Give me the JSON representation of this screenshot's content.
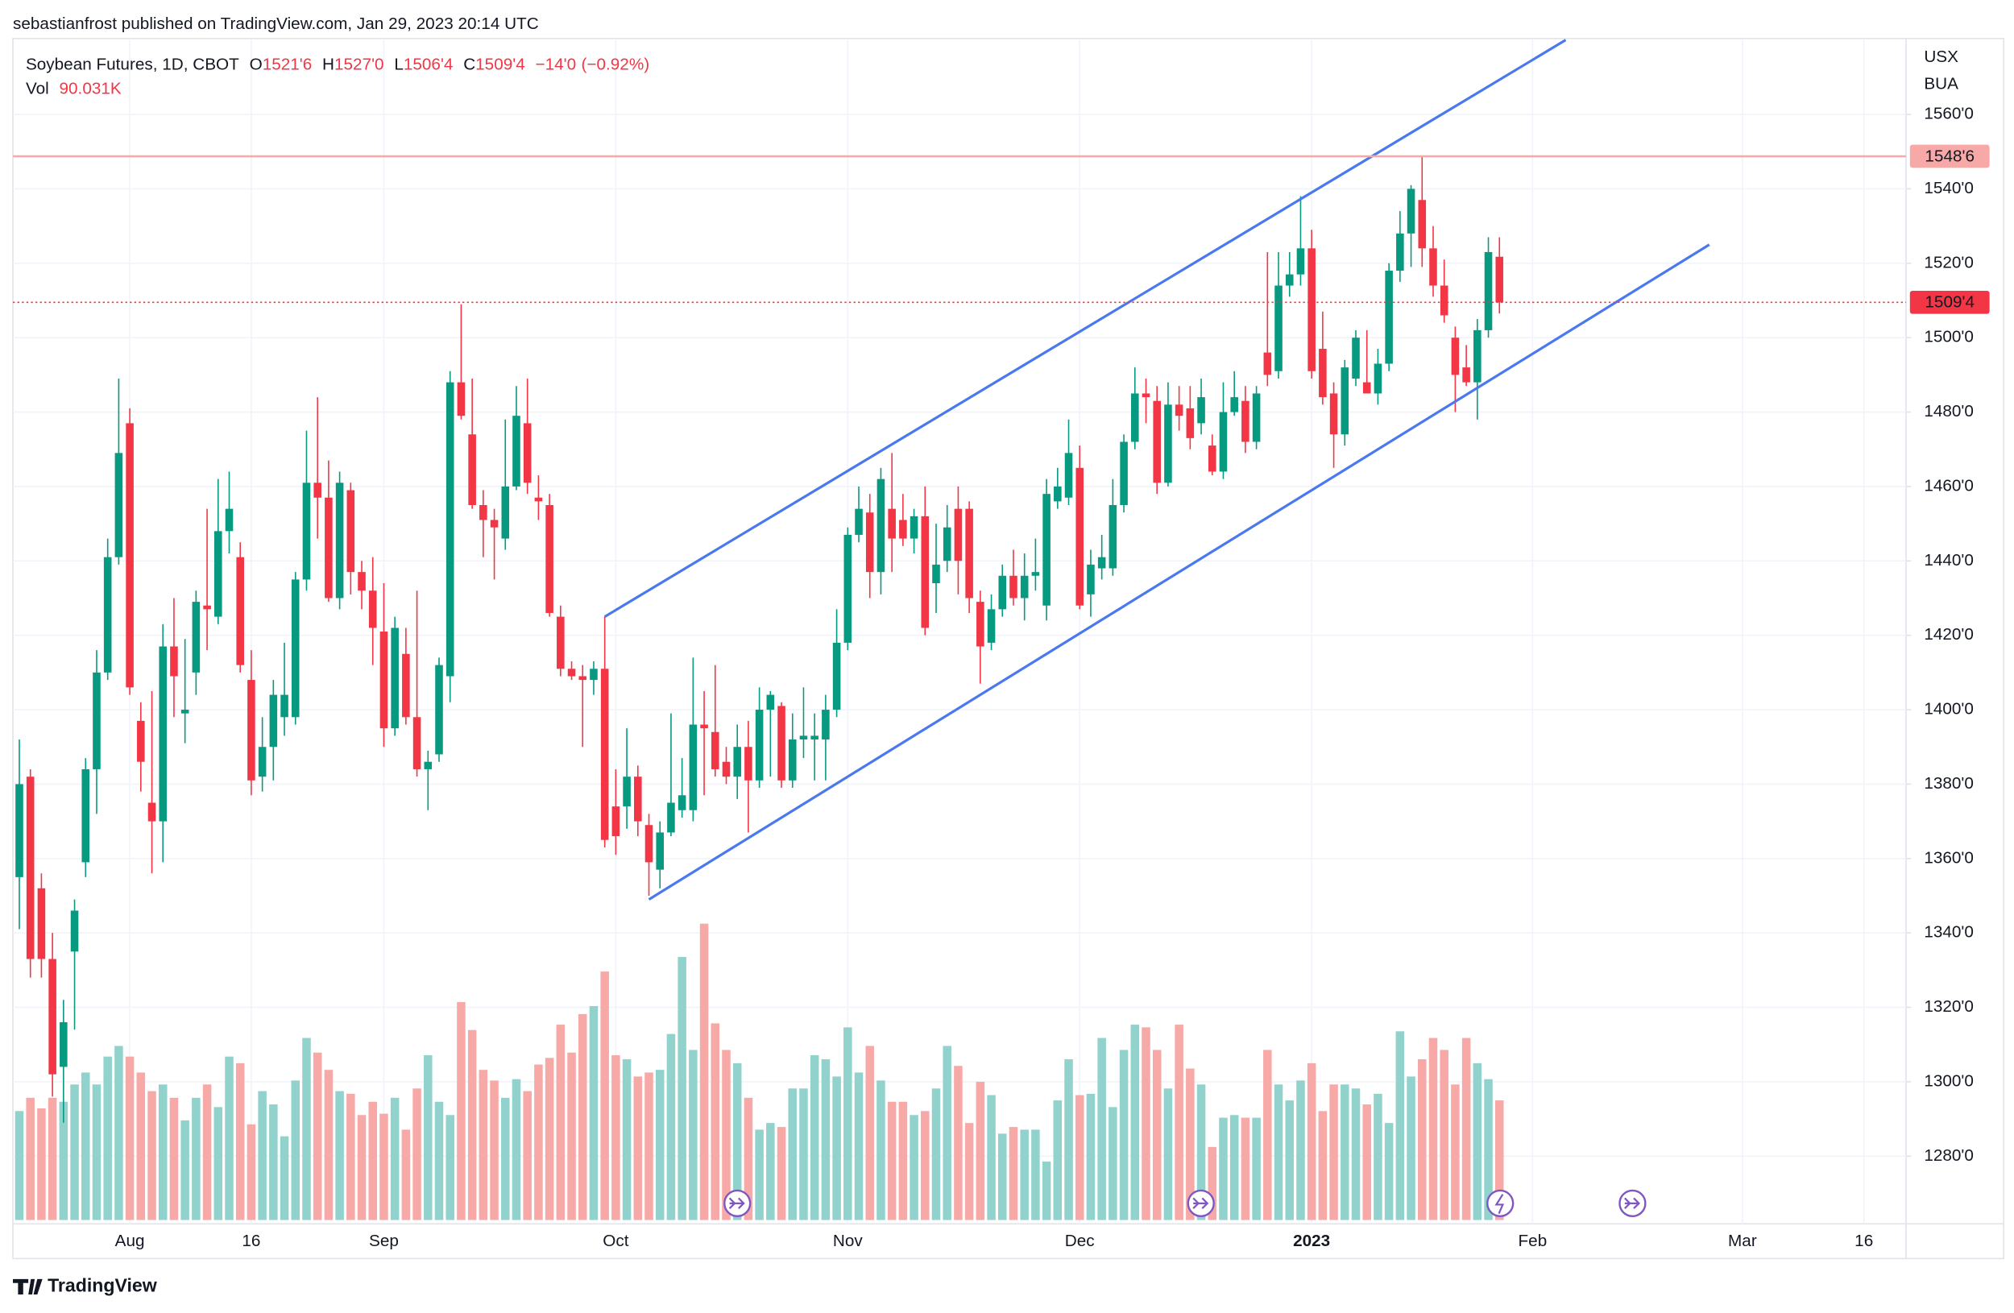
{
  "header": {
    "publisher": "sebastianfrost published on TradingView.com, Jan 29, 2023 20:14 UTC"
  },
  "footer": {
    "brand": "TradingView"
  },
  "chart_data": {
    "type": "candlestick",
    "title": "Soybean Futures, 1D, CBOT",
    "legend": [
      {
        "key": "O",
        "value": 1521.75,
        "label": "1521'6"
      },
      {
        "key": "H",
        "value": 1527,
        "label": "1527'0"
      },
      {
        "key": "L",
        "value": 1506.5,
        "label": "1506'4"
      },
      {
        "key": "C",
        "value": 1509.5,
        "label": "1509'4"
      }
    ],
    "change": {
      "value": -14,
      "label": "−14'0"
    },
    "change_percent": {
      "value": -0.92,
      "label": "(−0.92%)"
    },
    "volume_key": "Vol",
    "volume_last": {
      "value": 90031,
      "label": "90.031K"
    },
    "axis_units": [
      "USX",
      "BUA"
    ],
    "up_color": "#089981",
    "down_color": "#f23645",
    "volume_up_color": "#92d2cc",
    "volume_down_color": "#f7a9a7",
    "ylim": [
      1261.8,
      1580.4
    ],
    "yticks": [
      {
        "value": 1280,
        "label": "1280'0"
      },
      {
        "value": 1300,
        "label": "1300'0"
      },
      {
        "value": 1320,
        "label": "1320'0"
      },
      {
        "value": 1340,
        "label": "1340'0"
      },
      {
        "value": 1360,
        "label": "1360'0"
      },
      {
        "value": 1380,
        "label": "1380'0"
      },
      {
        "value": 1400,
        "label": "1400'0"
      },
      {
        "value": 1420,
        "label": "1420'0"
      },
      {
        "value": 1440,
        "label": "1440'0"
      },
      {
        "value": 1460,
        "label": "1460'0"
      },
      {
        "value": 1480,
        "label": "1480'0"
      },
      {
        "value": 1500,
        "label": "1500'0"
      },
      {
        "value": 1520,
        "label": "1520'0"
      },
      {
        "value": 1540,
        "label": "1540'0"
      },
      {
        "value": 1560,
        "label": "1560'0"
      }
    ],
    "grid": true,
    "hlines": [
      {
        "value": 1548.75,
        "label": "1548'6",
        "color": "#f7a9a8",
        "style": "solid"
      },
      {
        "value": 1509.5,
        "label": "1509'4",
        "color": "#f23645",
        "style": "dotted"
      }
    ],
    "trendlines": [
      {
        "from": [
          53,
          1425
        ],
        "to": [
          140,
          1580
        ],
        "color": "#4a78ee"
      },
      {
        "from": [
          57,
          1349
        ],
        "to": [
          153,
          1525
        ],
        "color": "#4a78ee"
      }
    ],
    "categories": [
      null,
      null,
      null,
      null,
      null,
      null,
      null,
      null,
      null,
      null,
      "Aug",
      null,
      null,
      null,
      null,
      null,
      null,
      null,
      null,
      null,
      null,
      "16",
      null,
      null,
      null,
      null,
      null,
      null,
      null,
      null,
      null,
      null,
      null,
      "Sep",
      null,
      null,
      null,
      null,
      null,
      null,
      null,
      null,
      null,
      null,
      null,
      null,
      null,
      null,
      null,
      null,
      null,
      null,
      null,
      null,
      "Oct",
      null,
      null,
      null,
      null,
      null,
      null,
      null,
      null,
      null,
      null,
      null,
      null,
      null,
      null,
      null,
      null,
      null,
      null,
      null,
      null,
      "Nov",
      null,
      null,
      null,
      null,
      null,
      null,
      null,
      null,
      null,
      null,
      null,
      null,
      null,
      null,
      null,
      null,
      null,
      null,
      null,
      null,
      "Dec",
      null,
      null,
      null,
      null,
      null,
      null,
      null,
      null,
      null,
      null,
      null,
      null,
      null,
      null,
      null,
      null,
      null,
      null,
      null,
      null,
      "2023",
      null,
      null,
      null,
      null,
      null,
      null,
      null,
      null,
      null,
      null,
      null,
      null,
      null,
      null,
      null,
      null,
      null,
      null,
      null,
      "Feb",
      null,
      null,
      null,
      null,
      null,
      null,
      null,
      null,
      null,
      null,
      null,
      null,
      null,
      null,
      null,
      null,
      null,
      null,
      "Mar",
      null,
      null,
      null,
      null,
      null,
      null,
      null,
      null,
      null,
      null,
      "16",
      null,
      null,
      null
    ],
    "open": [
      1355,
      1382,
      1352,
      1333,
      1304,
      1335,
      1359,
      1384,
      1410,
      1441,
      1477,
      1397,
      1375,
      1370,
      1417,
      1399,
      1410,
      1428,
      1425,
      1448,
      1441,
      1408,
      1382,
      1390,
      1398,
      1398,
      1435,
      1461,
      1457,
      1430,
      1459,
      1437,
      1432,
      1421,
      1395,
      1415,
      1398,
      1384,
      1388,
      1409,
      1488,
      1474,
      1455,
      1451,
      1446,
      1460,
      1477,
      1457,
      1455,
      1425,
      1411,
      1409,
      1408,
      1411,
      1374,
      1374,
      1382,
      1369,
      1357,
      1367,
      1373,
      1373,
      1396,
      1394,
      1386,
      1382,
      1390,
      1381,
      1400,
      1401,
      1381,
      1392,
      1392,
      1392,
      1400,
      1418,
      1447,
      1453,
      1437,
      1454,
      1451,
      1446,
      1452,
      1434,
      1440,
      1454,
      1454,
      1429,
      1418,
      1427,
      1436,
      1430,
      1436,
      1428,
      1456,
      1457,
      1465,
      1431,
      1438,
      1438,
      1455,
      1472,
      1485,
      1483,
      1461,
      1482,
      1481,
      1477,
      1471,
      1464,
      1480,
      1483,
      1472,
      1496,
      1491,
      1514,
      1517,
      1524,
      1497,
      1485,
      1474,
      1489,
      1488,
      1485,
      1493,
      1518,
      1528,
      1537,
      1524,
      1514,
      1500,
      1492,
      1488,
      1502,
      1521.75,
      null,
      null,
      null,
      null,
      null,
      null,
      null,
      null,
      null,
      null,
      null,
      null,
      null,
      null,
      null,
      null,
      null,
      null,
      null,
      null,
      null,
      null,
      null,
      null,
      null,
      null,
      null,
      null,
      null,
      null,
      null,
      null,
      null,
      null,
      null,
      null
    ],
    "high": [
      1392,
      1384,
      1356,
      1340,
      1322,
      1349,
      1387,
      1416,
      1446,
      1489,
      1481,
      1402,
      1405,
      1423,
      1430,
      1419,
      1432,
      1454,
      1462,
      1464,
      1445,
      1416,
      1398,
      1408,
      1418,
      1437,
      1475,
      1484,
      1467,
      1464,
      1461,
      1440,
      1441,
      1434,
      1425,
      1422,
      1432,
      1389,
      1414,
      1491,
      1509,
      1489,
      1459,
      1454,
      1478,
      1487,
      1489,
      1463,
      1458,
      1428,
      1413,
      1412,
      1413,
      1425,
      1384,
      1395,
      1385,
      1372,
      1370,
      1399,
      1387,
      1414,
      1405,
      1412,
      1390,
      1396,
      1397,
      1406,
      1405,
      1402,
      1399,
      1406,
      1399,
      1404,
      1427,
      1449,
      1460,
      1458,
      1465,
      1469,
      1458,
      1454,
      1460,
      1450,
      1455,
      1460,
      1456,
      1432,
      1431,
      1439,
      1443,
      1442,
      1446,
      1462,
      1465,
      1478,
      1471,
      1443,
      1447,
      1462,
      1474,
      1492,
      1489,
      1487,
      1488,
      1487,
      1487,
      1489,
      1474,
      1488,
      1491,
      1487,
      1487,
      1523,
      1523,
      1523,
      1538,
      1529,
      1507,
      1488,
      1494,
      1502,
      1502,
      1497,
      1520,
      1534,
      1541,
      1548.75,
      1530,
      1521,
      1503,
      1498,
      1505,
      1527,
      1527,
      null,
      null,
      null,
      null,
      null,
      null,
      null,
      null,
      null,
      null,
      null,
      null,
      null,
      null,
      null,
      null,
      null,
      null,
      null,
      null,
      null,
      null,
      null,
      null,
      null,
      null,
      null,
      null,
      null,
      null,
      null,
      null,
      null,
      null,
      null,
      null
    ],
    "low": [
      1341,
      1328,
      1328,
      1296,
      1289,
      1314,
      1355,
      1372,
      1408,
      1439,
      1404,
      1378,
      1356,
      1359,
      1398,
      1391,
      1404,
      1416,
      1423,
      1442,
      1410,
      1377,
      1378,
      1381,
      1393,
      1396,
      1432,
      1446,
      1429,
      1427,
      1431,
      1427,
      1412,
      1390,
      1393,
      1396,
      1382,
      1373,
      1386,
      1402,
      1478,
      1454,
      1441,
      1435,
      1443,
      1459,
      1458,
      1451,
      1425,
      1409,
      1408,
      1390,
      1404,
      1363,
      1361,
      1368,
      1366,
      1350,
      1352,
      1366,
      1371,
      1370,
      1377,
      1382,
      1380,
      1376,
      1367,
      1379,
      1382,
      1379,
      1379,
      1387,
      1381,
      1381,
      1398,
      1416,
      1445,
      1430,
      1431,
      1437,
      1444,
      1442,
      1420,
      1426,
      1437,
      1431,
      1426,
      1407,
      1416,
      1425,
      1428,
      1424,
      1432,
      1424,
      1454,
      1455,
      1427,
      1425,
      1435,
      1436,
      1453,
      1470,
      1477,
      1458,
      1460,
      1475,
      1470,
      1474,
      1463,
      1462,
      1479,
      1469,
      1470,
      1487,
      1489,
      1511,
      1514,
      1489,
      1482,
      1465,
      1471,
      1487,
      1486,
      1482,
      1491,
      1515,
      1519,
      1519,
      1511,
      1504,
      1480,
      1487,
      1478,
      1500,
      1506.5,
      null,
      null,
      null,
      null,
      null,
      null,
      null,
      null,
      null,
      null,
      null,
      null,
      null,
      null,
      null,
      null,
      null,
      null,
      null,
      null,
      null,
      null,
      null,
      null,
      null,
      null,
      null,
      null,
      null,
      null,
      null,
      null,
      null,
      null,
      null,
      null
    ],
    "close": [
      1380,
      1333,
      1333,
      1302,
      1316,
      1346,
      1384,
      1410,
      1441,
      1469,
      1406,
      1386,
      1370,
      1417,
      1409,
      1400,
      1429,
      1427,
      1448,
      1454,
      1412,
      1381,
      1390,
      1404,
      1404,
      1435,
      1461,
      1457,
      1430,
      1461,
      1437,
      1432,
      1422,
      1395,
      1422,
      1398,
      1384,
      1386,
      1412,
      1488,
      1479,
      1455,
      1451,
      1449,
      1460,
      1479,
      1461,
      1456,
      1426,
      1411,
      1409,
      1408,
      1411,
      1365,
      1366,
      1382,
      1370,
      1359,
      1367,
      1375,
      1377,
      1396,
      1395,
      1384,
      1382,
      1390,
      1381,
      1400,
      1404,
      1381,
      1392,
      1393,
      1393,
      1400,
      1418,
      1447,
      1454,
      1437,
      1462,
      1446,
      1446,
      1452,
      1422,
      1439,
      1449,
      1440,
      1430,
      1417,
      1427,
      1436,
      1430,
      1436,
      1437,
      1458,
      1460,
      1469,
      1428,
      1439,
      1441,
      1455,
      1472,
      1485,
      1484,
      1461,
      1482,
      1479,
      1473,
      1484,
      1464,
      1480,
      1484,
      1472,
      1485,
      1490,
      1514,
      1517,
      1524,
      1491,
      1484,
      1474,
      1492,
      1500,
      1485,
      1493,
      1518,
      1528,
      1540,
      1524,
      1514,
      1506,
      1490,
      1488,
      1502,
      1523,
      1509.5,
      null,
      null,
      null,
      null,
      null,
      null,
      null,
      null,
      null,
      null,
      null,
      null,
      null,
      null,
      null,
      null,
      null,
      null,
      null,
      null,
      null,
      null,
      null,
      null,
      null,
      null,
      null,
      null,
      null,
      null,
      null,
      null,
      null,
      null,
      null,
      null
    ],
    "volume": [
      82000,
      92000,
      84000,
      92000,
      89000,
      102000,
      111000,
      102000,
      123000,
      131000,
      123000,
      111000,
      97000,
      102000,
      92000,
      75000,
      92000,
      102000,
      85000,
      123000,
      118000,
      72000,
      97000,
      87000,
      63000,
      105000,
      137000,
      126000,
      113000,
      97000,
      95000,
      79000,
      89000,
      80000,
      92000,
      68000,
      99000,
      124000,
      89000,
      79000,
      164000,
      143000,
      113000,
      105000,
      92000,
      106000,
      97000,
      117000,
      122000,
      147000,
      126000,
      155000,
      161000,
      187000,
      124000,
      121000,
      108000,
      111000,
      113000,
      140000,
      198000,
      128000,
      223000,
      148000,
      128000,
      118000,
      92000,
      68000,
      73000,
      70000,
      99000,
      99000,
      124000,
      121000,
      108000,
      145000,
      111000,
      131000,
      105000,
      89000,
      89000,
      79000,
      82000,
      99000,
      131000,
      116000,
      73000,
      104000,
      94000,
      65000,
      70000,
      68000,
      68000,
      44000,
      90000,
      121000,
      94000,
      95000,
      137000,
      85000,
      128000,
      147000,
      145000,
      128000,
      99000,
      147000,
      114000,
      102000,
      55000,
      77000,
      79000,
      77000,
      77000,
      128000,
      102000,
      90000,
      105000,
      118000,
      82000,
      102000,
      102000,
      99000,
      87000,
      95000,
      73000,
      142000,
      108000,
      121000,
      137000,
      128000,
      102000,
      137000,
      118000,
      106000,
      90031,
      null,
      null,
      null,
      null,
      null,
      null,
      null,
      null,
      null,
      null,
      null,
      null,
      null,
      null,
      null,
      null,
      null,
      null,
      null,
      null,
      null,
      null,
      null,
      null,
      null,
      null,
      null,
      null,
      null,
      null,
      null,
      null,
      null,
      null,
      null,
      null
    ]
  }
}
